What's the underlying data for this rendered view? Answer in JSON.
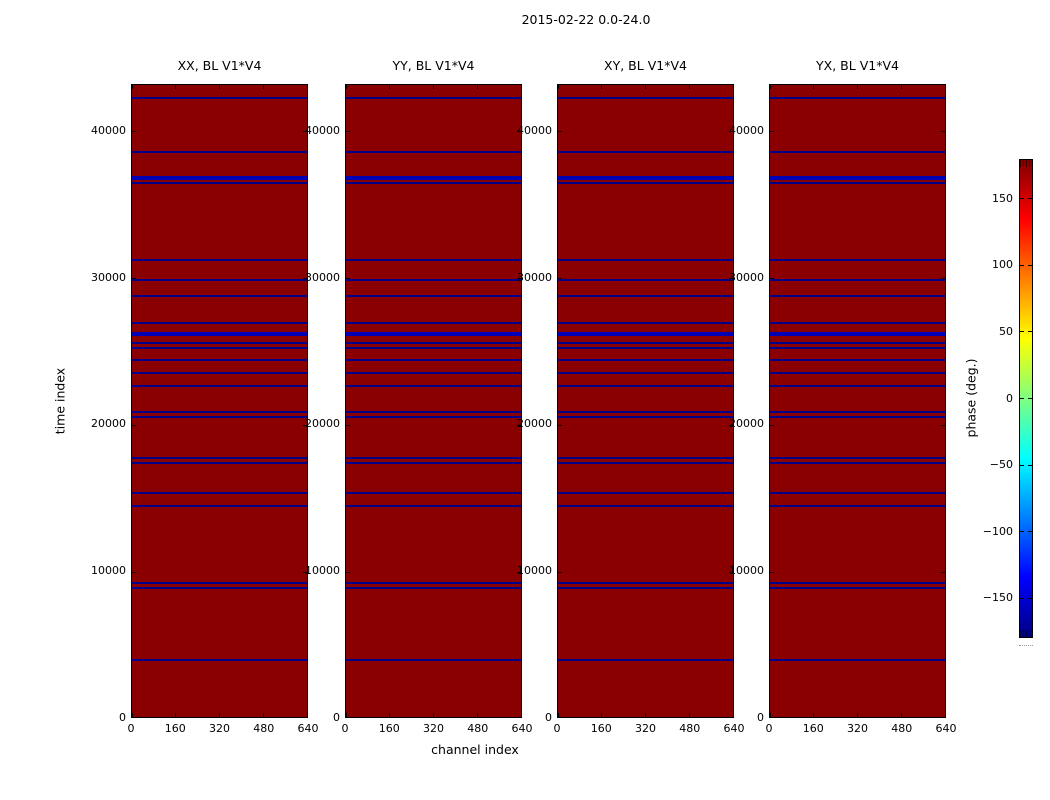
{
  "chart_data": {
    "type": "heatmap",
    "title": "2015-02-22 0.0-24.0",
    "xlabel": "channel index",
    "ylabel": "time index",
    "xlim": [
      0,
      640
    ],
    "ylim": [
      0,
      43200
    ],
    "xticks": [
      0,
      160,
      320,
      480,
      640
    ],
    "yticks": [
      0,
      10000,
      20000,
      30000,
      40000
    ],
    "subplots": [
      {
        "title": "XX, BL V1*V4"
      },
      {
        "title": "YY, BL V1*V4"
      },
      {
        "title": "XY, BL V1*V4"
      },
      {
        "title": "YX, BL V1*V4"
      }
    ],
    "body_phase_deg": 180,
    "body_color": "#8a0000",
    "line_color": "#00008b",
    "line_color_bright": "#0000b4",
    "flagged_time_rows": [
      {
        "time": 42300,
        "thick": false
      },
      {
        "time": 38650,
        "thick": false
      },
      {
        "time": 36850,
        "thick": true
      },
      {
        "time": 36500,
        "thick": false
      },
      {
        "time": 31250,
        "thick": false
      },
      {
        "time": 29900,
        "thick": false
      },
      {
        "time": 28850,
        "thick": false
      },
      {
        "time": 26950,
        "thick": false
      },
      {
        "time": 26250,
        "thick": true
      },
      {
        "time": 25650,
        "thick": false
      },
      {
        "time": 25250,
        "thick": false
      },
      {
        "time": 24450,
        "thick": false
      },
      {
        "time": 23600,
        "thick": false
      },
      {
        "time": 22700,
        "thick": false
      },
      {
        "time": 20950,
        "thick": false
      },
      {
        "time": 20600,
        "thick": false
      },
      {
        "time": 17800,
        "thick": false
      },
      {
        "time": 17450,
        "thick": false
      },
      {
        "time": 15400,
        "thick": false
      },
      {
        "time": 14500,
        "thick": false
      },
      {
        "time": 9300,
        "thick": false
      },
      {
        "time": 8950,
        "thick": false
      },
      {
        "time": 4050,
        "thick": false
      }
    ],
    "colorbar": {
      "label": "phase (deg.)",
      "range": [
        -180,
        180
      ],
      "ticks": [
        150,
        100,
        50,
        0,
        -50,
        -100,
        -150
      ],
      "tick_labels": [
        "150",
        "100",
        "50",
        "0",
        "−50",
        "−100",
        "−150"
      ],
      "colormap": "jet",
      "gradient_top_to_bottom": [
        {
          "pos": 0.0,
          "color": "#800000"
        },
        {
          "pos": 0.125,
          "color": "#ff0000"
        },
        {
          "pos": 0.375,
          "color": "#ffff00"
        },
        {
          "pos": 0.625,
          "color": "#00ffff"
        },
        {
          "pos": 0.875,
          "color": "#0000ff"
        },
        {
          "pos": 1.0,
          "color": "#000080"
        }
      ]
    }
  }
}
